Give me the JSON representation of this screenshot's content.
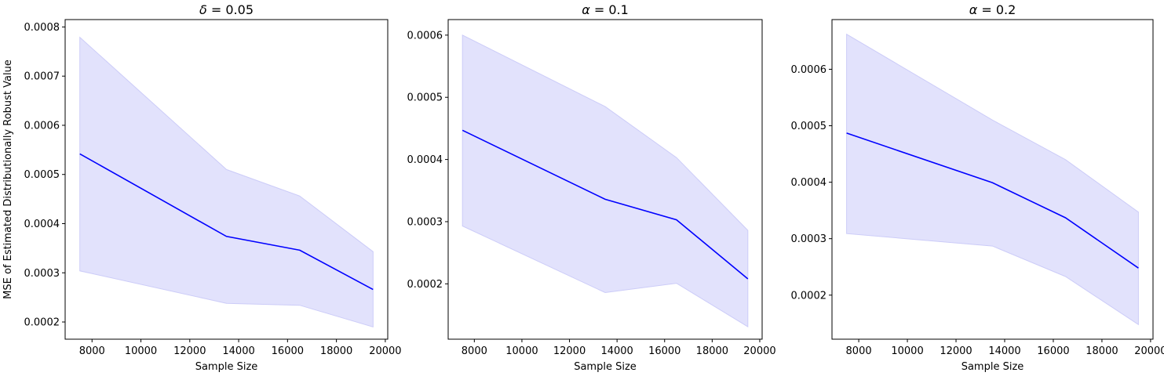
{
  "chart_data": [
    {
      "type": "line",
      "title": "δ = 0.05",
      "title_symbol": "δ",
      "title_value": "0.05",
      "xlabel": "Sample Size",
      "ylabel": "MSE of Estimated Distributionally Robust Value",
      "xlim": [
        6900,
        20100
      ],
      "ylim": [
        0.000165,
        0.000815
      ],
      "xticks": [
        8000,
        10000,
        12000,
        14000,
        16000,
        18000,
        20000
      ],
      "yticks": [
        0.0002,
        0.0003,
        0.0004,
        0.0005,
        0.0006,
        0.0007,
        0.0008
      ],
      "x": [
        7500,
        13500,
        16500,
        19500
      ],
      "series": [
        {
          "values": [
            0.000542,
            0.000374,
            0.000346,
            0.000266
          ],
          "lower": [
            0.000304,
            0.000238,
            0.000234,
            0.00019
          ],
          "upper": [
            0.000779,
            0.00051,
            0.000456,
            0.000343
          ]
        }
      ],
      "grid": false
    },
    {
      "type": "line",
      "title": "α = 0.1",
      "title_symbol": "α",
      "title_value": "0.1",
      "xlabel": "Sample Size",
      "ylabel": "",
      "xlim": [
        6900,
        20100
      ],
      "ylim": [
        0.000111,
        0.000625
      ],
      "xticks": [
        8000,
        10000,
        12000,
        14000,
        16000,
        18000,
        20000
      ],
      "yticks": [
        0.0002,
        0.0003,
        0.0004,
        0.0005,
        0.0006
      ],
      "x": [
        7500,
        13500,
        16500,
        19500
      ],
      "series": [
        {
          "values": [
            0.000447,
            0.000336,
            0.000303,
            0.000208
          ],
          "lower": [
            0.000293,
            0.000186,
            0.000201,
            0.000131
          ],
          "upper": [
            0.0006,
            0.000485,
            0.000403,
            0.000286
          ]
        }
      ],
      "grid": false
    },
    {
      "type": "line",
      "title": "α = 0.2",
      "title_symbol": "α",
      "title_value": "0.2",
      "xlabel": "Sample Size",
      "ylabel": "",
      "xlim": [
        6900,
        20100
      ],
      "ylim": [
        0.000122,
        0.000688
      ],
      "xticks": [
        8000,
        10000,
        12000,
        14000,
        16000,
        18000,
        20000
      ],
      "yticks": [
        0.0002,
        0.0003,
        0.0004,
        0.0005,
        0.0006
      ],
      "x": [
        7500,
        13500,
        16500,
        19500
      ],
      "series": [
        {
          "values": [
            0.000487,
            0.000399,
            0.000337,
            0.000248
          ],
          "lower": [
            0.000309,
            0.000287,
            0.000233,
            0.000148
          ],
          "upper": [
            0.000662,
            0.00051,
            0.00044,
            0.000347
          ]
        }
      ],
      "grid": false
    }
  ],
  "colors": {
    "line": "#0000ff",
    "band_fill": "#e2e2fc",
    "band_edge": "#ccccf8",
    "axes": "#000000"
  }
}
